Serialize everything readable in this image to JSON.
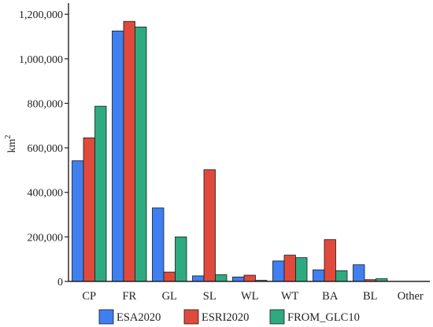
{
  "chart_data": {
    "type": "bar",
    "title": "",
    "ylabel": "km",
    "ylabel_superscript": "2",
    "ylim": [
      0,
      1250000
    ],
    "yticks": [
      0,
      200000,
      400000,
      600000,
      800000,
      1000000,
      1200000
    ],
    "ytick_labels": [
      "0",
      "200,000",
      "400,000",
      "600,000",
      "800,000",
      "1,000,000",
      "1,200,000"
    ],
    "categories": [
      "CP",
      "FR",
      "GL",
      "SL",
      "WL",
      "WT",
      "BA",
      "BL",
      "Other"
    ],
    "series": [
      {
        "name": "ESA2020",
        "color": "#3f7ff0",
        "values": [
          542000,
          1125000,
          330000,
          25000,
          20000,
          92000,
          52000,
          75000,
          0
        ]
      },
      {
        "name": "ESRI2020",
        "color": "#e04a3c",
        "values": [
          645000,
          1168000,
          42000,
          502000,
          28000,
          118000,
          188000,
          8000,
          0
        ]
      },
      {
        "name": "FROM_GLC10",
        "color": "#2eaa80",
        "values": [
          787000,
          1143000,
          200000,
          30000,
          5000,
          107000,
          48000,
          12000,
          0
        ]
      }
    ],
    "grid": false,
    "legend_position": "bottom"
  }
}
